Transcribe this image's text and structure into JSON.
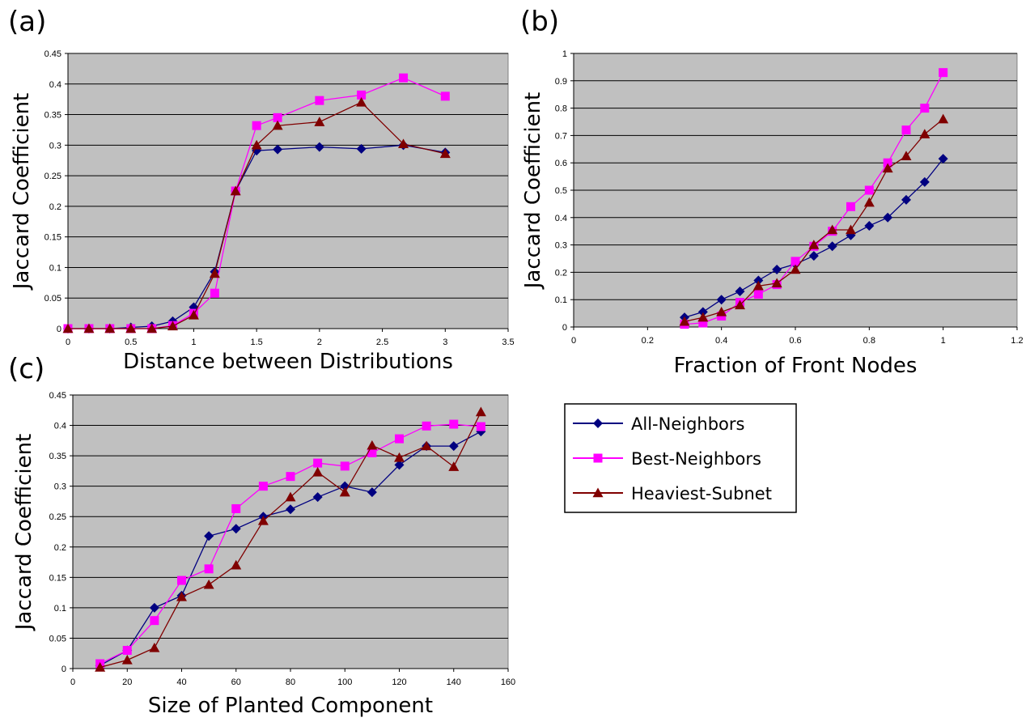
{
  "chart_data": [
    {
      "type": "line",
      "panel_label": "(a)",
      "title": "",
      "xlabel": "Distance between Distributions",
      "ylabel": "Jaccard Coefficient",
      "xlim": [
        0,
        3.5
      ],
      "ylim": [
        0,
        0.45
      ],
      "xticks": [
        0,
        0.5,
        1,
        1.5,
        2,
        2.5,
        3,
        3.5
      ],
      "xtick_labels": [
        "0",
        "0.5",
        "1",
        "1.5",
        "2",
        "2.5",
        "3",
        "3.5"
      ],
      "yticks": [
        0,
        0.05,
        0.1,
        0.15,
        0.2,
        0.25,
        0.3,
        0.35,
        0.4,
        0.45
      ],
      "ytick_labels": [
        "0",
        "0.05",
        "0.1",
        "0.15",
        "0.2",
        "0.25",
        "0.3",
        "0.35",
        "0.4",
        "0.45"
      ],
      "grid": "horizontal",
      "series": [
        {
          "name": "All-Neighbors",
          "color": "#000080",
          "marker": "diamond",
          "x": [
            0,
            0.167,
            0.333,
            0.5,
            0.667,
            0.833,
            1.0,
            1.167,
            1.333,
            1.5,
            1.667,
            2.0,
            2.333,
            2.667,
            3.0
          ],
          "y": [
            0,
            0,
            0,
            0.002,
            0.004,
            0.012,
            0.035,
            0.093,
            0.225,
            0.291,
            0.293,
            0.297,
            0.294,
            0.3,
            0.288
          ]
        },
        {
          "name": "Best-Neighbors",
          "color": "#ff00ff",
          "marker": "square",
          "x": [
            0,
            0.167,
            0.333,
            0.5,
            0.667,
            0.833,
            1.0,
            1.167,
            1.333,
            1.5,
            1.667,
            2.0,
            2.333,
            2.667,
            3.0
          ],
          "y": [
            0,
            0,
            0,
            0,
            0,
            0.005,
            0.025,
            0.058,
            0.225,
            0.332,
            0.345,
            0.373,
            0.382,
            0.41,
            0.38
          ]
        },
        {
          "name": "Heaviest-Subnet",
          "color": "#800000",
          "marker": "triangle",
          "x": [
            0,
            0.167,
            0.333,
            0.5,
            0.667,
            0.833,
            1.0,
            1.167,
            1.333,
            1.5,
            1.667,
            2.0,
            2.333,
            2.667,
            3.0
          ],
          "y": [
            0,
            0,
            0,
            0,
            0,
            0.004,
            0.022,
            0.09,
            0.225,
            0.3,
            0.332,
            0.338,
            0.37,
            0.302,
            0.286
          ]
        }
      ]
    },
    {
      "type": "line",
      "panel_label": "(b)",
      "title": "",
      "xlabel": "Fraction of Front Nodes",
      "ylabel": "Jaccard Coefficient",
      "xlim": [
        0,
        1.2
      ],
      "ylim": [
        0,
        1
      ],
      "xticks": [
        0,
        0.2,
        0.4,
        0.6,
        0.8,
        1,
        1.2
      ],
      "xtick_labels": [
        "0",
        "0.2",
        "0.4",
        "0.6",
        "0.8",
        "1",
        "1.2"
      ],
      "yticks": [
        0,
        0.1,
        0.2,
        0.3,
        0.4,
        0.5,
        0.6,
        0.7,
        0.8,
        0.9,
        1
      ],
      "ytick_labels": [
        "0",
        "0.1",
        "0.2",
        "0.3",
        "0.4",
        "0.5",
        "0.6",
        "0.7",
        "0.8",
        "0.9",
        "1"
      ],
      "grid": "horizontal",
      "series": [
        {
          "name": "All-Neighbors",
          "color": "#000080",
          "marker": "diamond",
          "x": [
            0.3,
            0.35,
            0.4,
            0.45,
            0.5,
            0.55,
            0.6,
            0.65,
            0.7,
            0.75,
            0.8,
            0.85,
            0.9,
            0.95,
            1.0
          ],
          "y": [
            0.035,
            0.055,
            0.1,
            0.13,
            0.17,
            0.21,
            0.23,
            0.26,
            0.295,
            0.335,
            0.37,
            0.4,
            0.465,
            0.53,
            0.615
          ]
        },
        {
          "name": "Best-Neighbors",
          "color": "#ff00ff",
          "marker": "square",
          "x": [
            0.3,
            0.35,
            0.4,
            0.45,
            0.5,
            0.55,
            0.6,
            0.65,
            0.7,
            0.75,
            0.8,
            0.85,
            0.9,
            0.95,
            1.0
          ],
          "y": [
            0.01,
            0.015,
            0.04,
            0.09,
            0.12,
            0.155,
            0.24,
            0.295,
            0.35,
            0.44,
            0.5,
            0.6,
            0.72,
            0.8,
            0.93
          ]
        },
        {
          "name": "Heaviest-Subnet",
          "color": "#800000",
          "marker": "triangle",
          "x": [
            0.3,
            0.35,
            0.4,
            0.45,
            0.5,
            0.55,
            0.6,
            0.65,
            0.7,
            0.75,
            0.8,
            0.85,
            0.9,
            0.95,
            1.0
          ],
          "y": [
            0.02,
            0.035,
            0.055,
            0.08,
            0.15,
            0.16,
            0.21,
            0.3,
            0.355,
            0.355,
            0.455,
            0.58,
            0.625,
            0.705,
            0.76
          ]
        }
      ]
    },
    {
      "type": "line",
      "panel_label": "(c)",
      "title": "",
      "xlabel": "Size of Planted Component",
      "ylabel": "Jaccard Coefficient",
      "xlim": [
        0,
        160
      ],
      "ylim": [
        0,
        0.45
      ],
      "xticks": [
        0,
        20,
        40,
        60,
        80,
        100,
        120,
        140,
        160
      ],
      "xtick_labels": [
        "0",
        "20",
        "40",
        "60",
        "80",
        "100",
        "120",
        "140",
        "160"
      ],
      "yticks": [
        0,
        0.05,
        0.1,
        0.15,
        0.2,
        0.25,
        0.3,
        0.35,
        0.4,
        0.45
      ],
      "ytick_labels": [
        "0",
        "0.05",
        "0.1",
        "0.15",
        "0.2",
        "0.25",
        "0.3",
        "0.35",
        "0.4",
        "0.45"
      ],
      "grid": "horizontal",
      "series": [
        {
          "name": "All-Neighbors",
          "color": "#000080",
          "marker": "diamond",
          "x": [
            10,
            20,
            30,
            40,
            50,
            60,
            70,
            80,
            90,
            100,
            110,
            120,
            130,
            140,
            150
          ],
          "y": [
            0.005,
            0.03,
            0.1,
            0.12,
            0.218,
            0.23,
            0.25,
            0.262,
            0.282,
            0.3,
            0.29,
            0.335,
            0.366,
            0.366,
            0.39
          ]
        },
        {
          "name": "Best-Neighbors",
          "color": "#ff00ff",
          "marker": "square",
          "x": [
            10,
            20,
            30,
            40,
            50,
            60,
            70,
            80,
            90,
            100,
            110,
            120,
            130,
            140,
            150
          ],
          "y": [
            0.008,
            0.03,
            0.079,
            0.145,
            0.164,
            0.263,
            0.3,
            0.316,
            0.338,
            0.333,
            0.355,
            0.378,
            0.399,
            0.402,
            0.398
          ]
        },
        {
          "name": "Heaviest-Subnet",
          "color": "#800000",
          "marker": "triangle",
          "x": [
            10,
            20,
            30,
            40,
            50,
            60,
            70,
            80,
            90,
            100,
            110,
            120,
            130,
            140,
            150
          ],
          "y": [
            0.002,
            0.014,
            0.034,
            0.118,
            0.138,
            0.17,
            0.243,
            0.282,
            0.323,
            0.29,
            0.367,
            0.347,
            0.366,
            0.332,
            0.422
          ]
        }
      ]
    }
  ],
  "legend": {
    "placement": "right of panel (c)",
    "entries": [
      {
        "label": "All-Neighbors",
        "color": "#000080",
        "marker": "diamond"
      },
      {
        "label": "Best-Neighbors",
        "color": "#ff00ff",
        "marker": "square"
      },
      {
        "label": "Heaviest-Subnet",
        "color": "#800000",
        "marker": "triangle"
      }
    ]
  },
  "colors": {
    "plot_background": "#c0c0c0",
    "gridline": "#000000"
  }
}
